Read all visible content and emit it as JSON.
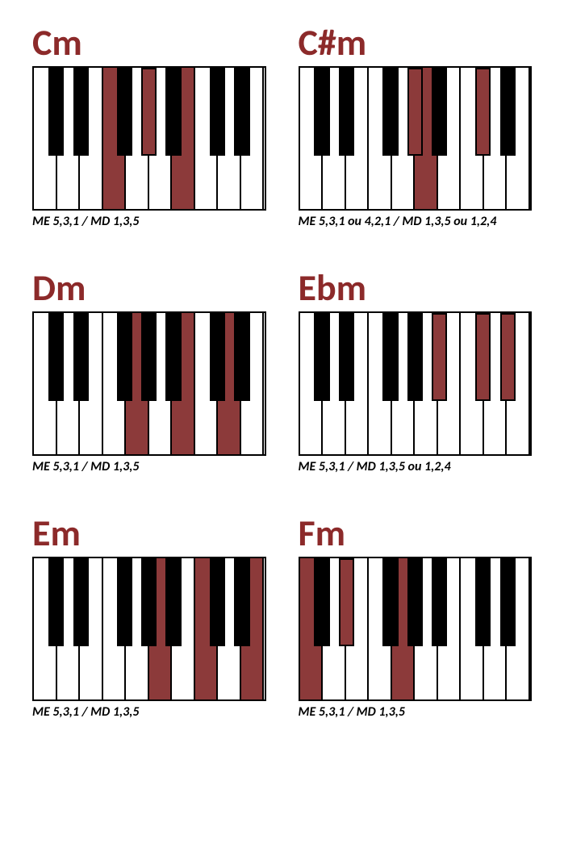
{
  "colors": {
    "title": "#8c2a2a",
    "highlight": "#8c3a3a",
    "black": "#000000",
    "white": "#ffffff"
  },
  "layout": {
    "whiteKeysPerOctave": 7,
    "blackKeyWidthFrac": 0.68,
    "blackOffsets": [
      0.62,
      1.7,
      3.6,
      4.66,
      5.72
    ]
  },
  "chords": [
    {
      "name": "Cm",
      "caption": "ME 5,3,1 / MD 1,3,5",
      "whiteKeys": 10,
      "highlightWhite": [
        4,
        7
      ],
      "blackPositions": [
        0.62,
        1.7,
        3.6,
        4.66,
        5.72,
        7.62,
        8.7
      ],
      "highlightBlack": [
        4.66
      ]
    },
    {
      "name": "C#m",
      "caption": "ME 5,3,1 ou 4,2,1 / MD 1,3,5 ou 1,2,4",
      "whiteKeys": 10,
      "highlightWhite": [
        6
      ],
      "blackPositions": [
        0.62,
        1.7,
        3.6,
        4.66,
        5.72,
        7.62,
        8.7
      ],
      "highlightBlack": [
        4.66,
        7.62
      ]
    },
    {
      "name": "Dm",
      "caption": "ME 5,3,1 / MD 1,3,5",
      "whiteKeys": 10,
      "highlightWhite": [
        5,
        7,
        9
      ],
      "blackPositions": [
        0.62,
        1.7,
        3.6,
        4.66,
        5.72,
        7.62,
        8.7
      ],
      "highlightBlack": []
    },
    {
      "name": "Ebm",
      "caption": "ME 5,3,1 / MD 1,3,5 ou 1,2,4",
      "whiteKeys": 10,
      "highlightWhite": [],
      "blackPositions": [
        0.62,
        1.7,
        3.6,
        4.66,
        5.72,
        7.62,
        8.7
      ],
      "highlightBlack": [
        5.72,
        7.62,
        8.7
      ]
    },
    {
      "name": "Em",
      "caption": "ME 5,3,1 / MD 1,3,5",
      "whiteKeys": 10,
      "highlightWhite": [
        6,
        8,
        10
      ],
      "blackPositions": [
        0.62,
        1.7,
        3.6,
        4.66,
        5.72,
        7.62,
        8.7
      ],
      "highlightBlack": []
    },
    {
      "name": "Fm",
      "caption": "ME 5,3,1 / MD 1,3,5",
      "whiteKeys": 10,
      "highlightWhite": [
        1,
        5
      ],
      "blackPositions": [
        0.62,
        1.7,
        3.6,
        4.66,
        5.72,
        7.62,
        8.7
      ],
      "highlightBlack": [
        1.7
      ]
    }
  ]
}
